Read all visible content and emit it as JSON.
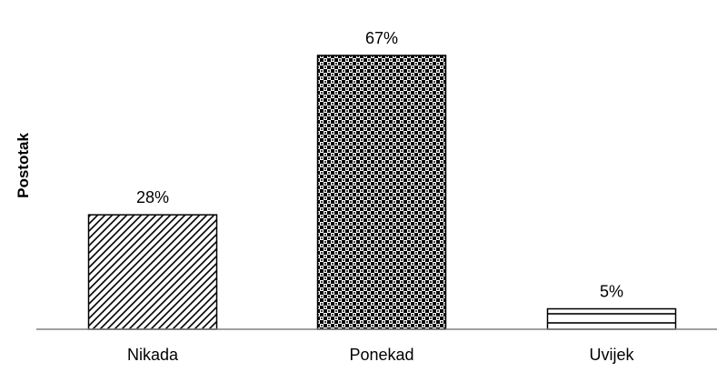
{
  "chart_data": {
    "type": "bar",
    "title": "",
    "xlabel": "",
    "ylabel": "Postotak",
    "categories": [
      "Nikada",
      "Ponekad",
      "Uvijek"
    ],
    "values": [
      28,
      67,
      5
    ],
    "data_labels": [
      "28%",
      "67%",
      "5%"
    ],
    "ylim": [
      0,
      75
    ],
    "grid": false,
    "legend": "none",
    "bar_fills": [
      "diagonal-hatch",
      "checkerboard",
      "horizontal-lines"
    ],
    "colors": {
      "bar_outline": "#000000",
      "axis": "#808080",
      "background": "#ffffff"
    }
  }
}
